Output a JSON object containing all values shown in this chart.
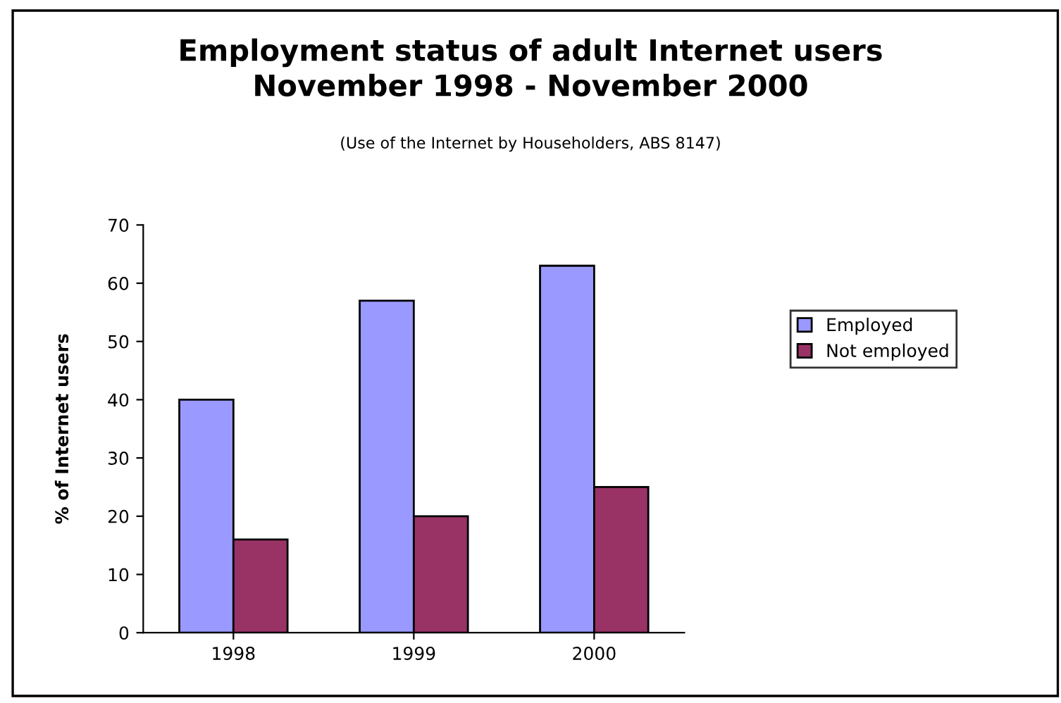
{
  "chart_data": {
    "type": "bar",
    "title": "Employment status of adult Internet users\nNovember 1998 - November 2000",
    "subtitle": "(Use of the Internet by Householders, ABS 8147)",
    "ylabel": "% of Internet users",
    "categories": [
      "1998",
      "1999",
      "2000"
    ],
    "series": [
      {
        "name": "Employed",
        "color": "#9999ff",
        "values": [
          40,
          57,
          63
        ]
      },
      {
        "name": "Not employed",
        "color": "#993366",
        "values": [
          16,
          20,
          25
        ]
      }
    ],
    "ylim": [
      0,
      70
    ],
    "yticks": [
      0,
      10,
      20,
      30,
      40,
      50,
      60,
      70
    ],
    "grid": false,
    "legend": "right"
  }
}
